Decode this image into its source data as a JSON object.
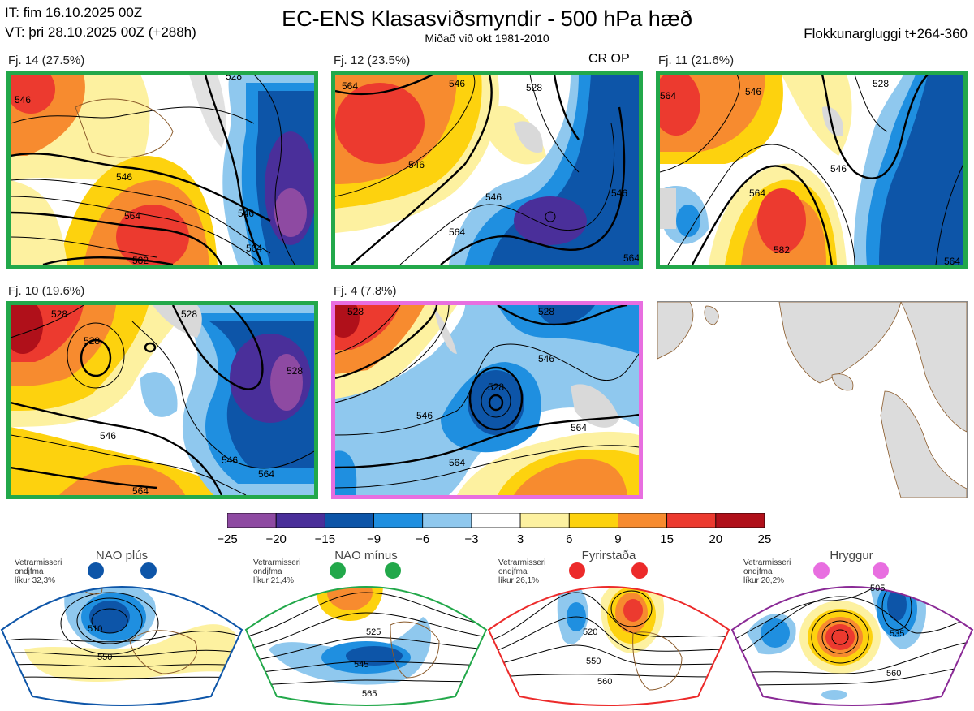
{
  "header": {
    "it_line": "IT: fim 16.10.2025 00Z",
    "vt_line": "VT: þri 28.10.2025 00Z  (+288h)",
    "title": "EC-ENS Klasasviðsmyndir - 500 hPa hæð",
    "subtitle": "Miðað við okt 1981-2010",
    "window": "Flokkunargluggi t+264-360"
  },
  "panels": [
    {
      "label": "Fj. 14 (27.5%)",
      "border": "#22a84a",
      "contours": [
        "528",
        "546",
        "546",
        "564",
        "564",
        "582"
      ]
    },
    {
      "label": "Fj. 12 (23.5%)",
      "border": "#22a84a",
      "note": "CR OP",
      "contours": [
        "564",
        "546",
        "528",
        "546",
        "546",
        "564",
        "564"
      ]
    },
    {
      "label": "Fj. 11 (21.6%)",
      "border": "#22a84a",
      "contours": [
        "564",
        "546",
        "528",
        "546",
        "564",
        "582",
        "564"
      ]
    },
    {
      "label": "Fj. 10 (19.6%)",
      "border": "#22a84a",
      "contours": [
        "528",
        "528",
        "528",
        "546",
        "546",
        "564",
        "564"
      ]
    },
    {
      "label": "Fj. 4 (7.8%)",
      "border": "#e86ee0",
      "contours": [
        "528",
        "528",
        "546",
        "546",
        "564",
        "564"
      ]
    }
  ],
  "colorbar": {
    "colors": [
      "#8e4aa2",
      "#4a2f9a",
      "#0d55a8",
      "#1f8fe0",
      "#8fc8ee",
      "#ffffff",
      "#fdf1a0",
      "#fdd20e",
      "#f78b2f",
      "#ec3a2f",
      "#b0101a"
    ],
    "labels": [
      "−25",
      "−20",
      "−15",
      "−9",
      "−6",
      "−3",
      "3",
      "6",
      "9",
      "15",
      "20",
      "25"
    ]
  },
  "regimes": [
    {
      "name": "NAO plús",
      "stat": "Vetrarmisseri\nondjfma\nlíkur 32,3%",
      "color": "#0d55a8",
      "contours": [
        "510",
        "550"
      ]
    },
    {
      "name": "NAO mínus",
      "stat": "Vetrarmisseri\nondjfma\nlíkur 21,4%",
      "color": "#22a84a",
      "contours": [
        "525",
        "545",
        "565"
      ]
    },
    {
      "name": "Fyrirstaða",
      "stat": "Vetrarmisseri\nondjfma\nlíkur 26,1%",
      "color": "#ec2a2a",
      "contours": [
        "520",
        "550",
        "560"
      ]
    },
    {
      "name": "Hryggur",
      "stat": "Vetrarmisseri\nondjfma\nlíkur 20,2%",
      "color": "#8a2a96",
      "contours": [
        "505",
        "535",
        "560"
      ]
    }
  ]
}
